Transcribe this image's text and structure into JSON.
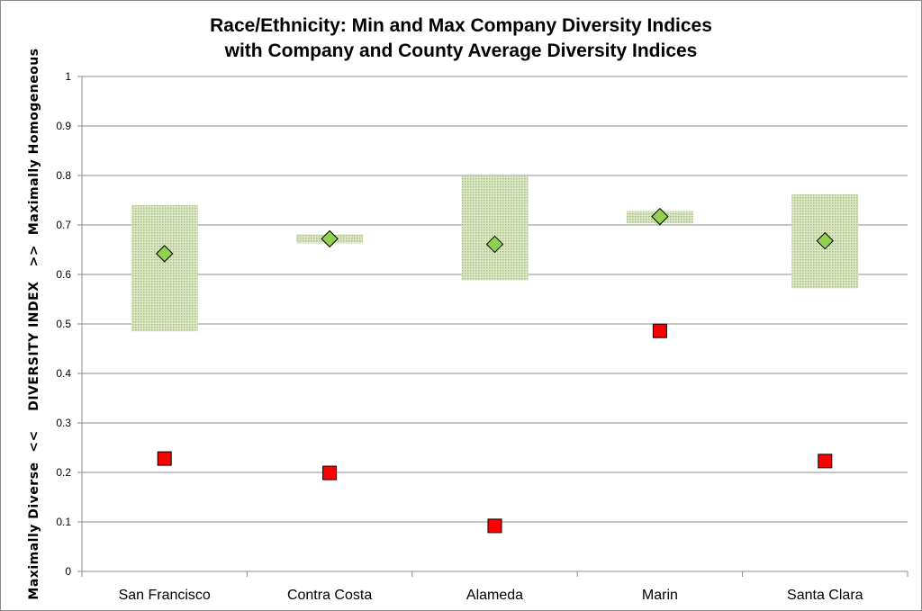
{
  "chart_data": {
    "type": "scatter",
    "title": [
      "Race/Ethnicity: Min and Max Company Diversity Indices",
      "with Company and County Average Diversity Indices"
    ],
    "ylabel": "Maximally Diverse  <<    DIVERSITY INDEX   >>  Maximally Homogeneous",
    "xlabel": "",
    "ylim": [
      0,
      1
    ],
    "yticks": [
      "0",
      "0.1",
      "0.2",
      "0.3",
      "0.4",
      "0.5",
      "0.6",
      "0.7",
      "0.8",
      "0.9",
      "1"
    ],
    "grid": true,
    "categories": [
      "San Francisco",
      "Contra Costa",
      "Alameda",
      "Marin",
      "Santa Clara"
    ],
    "range_min": [
      0.485,
      0.663,
      0.588,
      0.703,
      0.572
    ],
    "range_max": [
      0.74,
      0.681,
      0.8,
      0.728,
      0.762
    ],
    "company_average": [
      0.642,
      0.672,
      0.661,
      0.717,
      0.668
    ],
    "county_average": [
      0.228,
      0.199,
      0.092,
      0.486,
      0.223
    ],
    "colors": {
      "range": "#c4d7a4",
      "company_marker": "#92d050",
      "county_marker": "#ff0000",
      "grid": "#8c8c8c"
    }
  }
}
